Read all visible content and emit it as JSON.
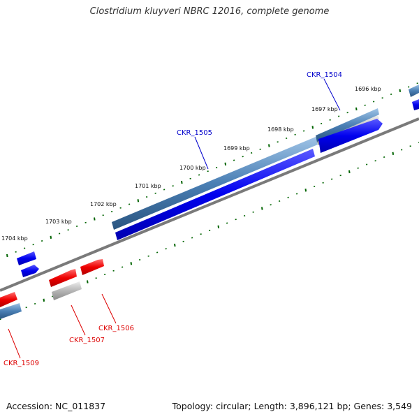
{
  "title": "Clostridium kluyveri NBRC 12016, complete genome",
  "footer": {
    "accession": "Accession: NC_011837",
    "summary": "Topology: circular; Length: 3,896,121 bp; Genes: 3,549"
  },
  "ruler_labels": [
    "1696 kbp",
    "1697 kbp",
    "1698 kbp",
    "1699 kbp",
    "1700 kbp",
    "1701 kbp",
    "1702 kbp",
    "1703 kbp",
    "1704 kbp"
  ],
  "gene_labels": [
    {
      "text": "CKR_1504",
      "strand": "plus"
    },
    {
      "text": "CKR_1505",
      "strand": "plus"
    },
    {
      "text": "CKR_1506",
      "strand": "minus"
    },
    {
      "text": "CKR_1507",
      "strand": "minus"
    },
    {
      "text": "CKR_1509",
      "strand": "minus"
    }
  ],
  "colors": {
    "plus_label": "#0000cc",
    "minus_label": "#dd0000",
    "cds_plus": "#0000ff",
    "cds_minus": "#ff0000",
    "gene_track": "#4682b4",
    "pseudo_track": "#b0b0b0",
    "ruler_ticks": "#006400",
    "backbone": "#808080"
  }
}
